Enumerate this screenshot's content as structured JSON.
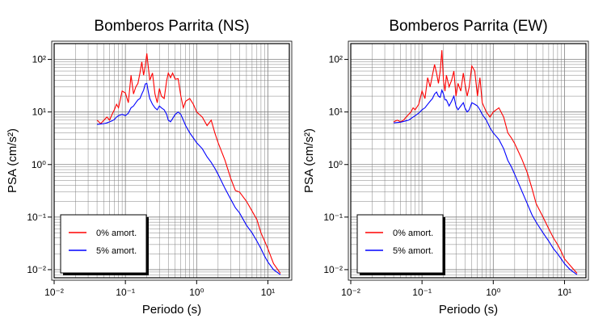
{
  "chart_data": [
    {
      "type": "line",
      "title": "Bomberos Parrita (NS)",
      "xlabel": "Periodo (s)",
      "ylabel": "PSA (cm/s²)",
      "xscale": "log",
      "yscale": "log",
      "xlim": [
        0.01,
        20
      ],
      "ylim": [
        0.007,
        200
      ],
      "grid": true,
      "legend_position": "bottom-left",
      "x_ticks": [
        "10⁻²",
        "10⁻¹",
        "10⁰",
        "10¹"
      ],
      "y_ticks": [
        "10⁻²",
        "10⁻¹",
        "10⁰",
        "10¹",
        "10²"
      ],
      "series": [
        {
          "name": "0% amort.",
          "color": "#ff0000",
          "x": [
            0.04,
            0.045,
            0.05,
            0.055,
            0.06,
            0.065,
            0.07,
            0.075,
            0.08,
            0.09,
            0.1,
            0.11,
            0.12,
            0.13,
            0.14,
            0.15,
            0.16,
            0.17,
            0.18,
            0.19,
            0.2,
            0.21,
            0.22,
            0.24,
            0.26,
            0.28,
            0.3,
            0.32,
            0.35,
            0.38,
            0.4,
            0.43,
            0.46,
            0.5,
            0.55,
            0.6,
            0.65,
            0.7,
            0.8,
            0.9,
            1.0,
            1.2,
            1.4,
            1.6,
            1.8,
            2.0,
            2.5,
            3.0,
            3.5,
            4.0,
            5.0,
            6.0,
            7.0,
            8.0,
            9.0,
            10,
            12,
            15
          ],
          "y": [
            7,
            6,
            7,
            8,
            7,
            9,
            11,
            14,
            12,
            25,
            23,
            15,
            50,
            22,
            30,
            35,
            55,
            90,
            50,
            75,
            130,
            70,
            40,
            55,
            22,
            15,
            28,
            20,
            18,
            40,
            55,
            45,
            55,
            42,
            43,
            20,
            12,
            16,
            18,
            14,
            10,
            8,
            5.5,
            7,
            4,
            2.6,
            1.2,
            0.55,
            0.32,
            0.3,
            0.2,
            0.13,
            0.09,
            0.05,
            0.035,
            0.025,
            0.013,
            0.0085
          ]
        },
        {
          "name": "5% amort.",
          "color": "#0000ff",
          "x": [
            0.04,
            0.045,
            0.05,
            0.055,
            0.06,
            0.065,
            0.07,
            0.075,
            0.08,
            0.09,
            0.1,
            0.11,
            0.12,
            0.13,
            0.14,
            0.15,
            0.16,
            0.17,
            0.18,
            0.19,
            0.2,
            0.21,
            0.22,
            0.24,
            0.26,
            0.28,
            0.3,
            0.32,
            0.35,
            0.38,
            0.4,
            0.43,
            0.46,
            0.5,
            0.55,
            0.6,
            0.65,
            0.7,
            0.8,
            0.9,
            1.0,
            1.2,
            1.4,
            1.6,
            1.8,
            2.0,
            2.5,
            3.0,
            3.5,
            4.0,
            5.0,
            6.0,
            7.0,
            8.0,
            9.0,
            10,
            12,
            15
          ],
          "y": [
            5.8,
            5.9,
            6,
            6.2,
            6.5,
            6.8,
            7.2,
            8,
            8.5,
            9,
            8.5,
            9.5,
            12,
            13,
            15,
            17,
            18,
            22,
            26,
            34,
            35,
            24,
            18,
            14,
            12,
            11,
            13,
            12,
            11,
            9,
            7,
            6.5,
            7.5,
            9,
            10,
            9,
            7,
            5.5,
            4,
            3.2,
            2.6,
            2,
            1.4,
            1.1,
            0.85,
            0.65,
            0.35,
            0.22,
            0.15,
            0.12,
            0.07,
            0.05,
            0.035,
            0.025,
            0.018,
            0.014,
            0.01,
            0.008
          ]
        }
      ]
    },
    {
      "type": "line",
      "title": "Bomberos Parrita (EW)",
      "xlabel": "Periodo (s)",
      "ylabel": "PSA (cm/s²)",
      "xscale": "log",
      "yscale": "log",
      "xlim": [
        0.01,
        20
      ],
      "ylim": [
        0.007,
        200
      ],
      "grid": true,
      "legend_position": "bottom-left",
      "x_ticks": [
        "10⁻²",
        "10⁻¹",
        "10⁰",
        "10¹"
      ],
      "y_ticks": [
        "10⁻²",
        "10⁻¹",
        "10⁰",
        "10¹",
        "10²"
      ],
      "series": [
        {
          "name": "0% amort.",
          "color": "#ff0000",
          "x": [
            0.04,
            0.045,
            0.05,
            0.055,
            0.06,
            0.065,
            0.07,
            0.075,
            0.08,
            0.09,
            0.1,
            0.11,
            0.12,
            0.13,
            0.14,
            0.15,
            0.16,
            0.17,
            0.18,
            0.19,
            0.2,
            0.21,
            0.22,
            0.24,
            0.26,
            0.28,
            0.3,
            0.32,
            0.35,
            0.38,
            0.4,
            0.43,
            0.46,
            0.5,
            0.55,
            0.6,
            0.65,
            0.7,
            0.8,
            0.9,
            1.0,
            1.2,
            1.4,
            1.6,
            1.8,
            2.0,
            2.5,
            3.0,
            3.5,
            4.0,
            5.0,
            6.0,
            7.0,
            8.0,
            9.0,
            10,
            12,
            15
          ],
          "y": [
            6.5,
            7,
            6.5,
            7,
            8,
            9,
            10,
            12,
            11,
            14,
            25,
            18,
            45,
            30,
            50,
            80,
            55,
            35,
            60,
            150,
            40,
            25,
            50,
            30,
            40,
            60,
            20,
            35,
            25,
            55,
            35,
            20,
            30,
            75,
            60,
            20,
            45,
            15,
            10,
            8,
            10,
            12,
            8,
            4,
            3.2,
            2.5,
            1.3,
            0.7,
            0.35,
            0.18,
            0.1,
            0.06,
            0.04,
            0.03,
            0.022,
            0.016,
            0.012,
            0.0085
          ]
        },
        {
          "name": "5% amort.",
          "color": "#0000ff",
          "x": [
            0.04,
            0.045,
            0.05,
            0.055,
            0.06,
            0.065,
            0.07,
            0.075,
            0.08,
            0.09,
            0.1,
            0.11,
            0.12,
            0.13,
            0.14,
            0.15,
            0.16,
            0.17,
            0.18,
            0.19,
            0.2,
            0.21,
            0.22,
            0.24,
            0.26,
            0.28,
            0.3,
            0.32,
            0.35,
            0.38,
            0.4,
            0.43,
            0.46,
            0.5,
            0.55,
            0.6,
            0.65,
            0.7,
            0.8,
            0.9,
            1.0,
            1.2,
            1.4,
            1.6,
            1.8,
            2.0,
            2.5,
            3.0,
            3.5,
            4.0,
            5.0,
            6.0,
            7.0,
            8.0,
            9.0,
            10,
            12,
            15
          ],
          "y": [
            6.2,
            6.3,
            6.4,
            6.6,
            6.8,
            7,
            7.5,
            8,
            8.5,
            9.5,
            11,
            12,
            14,
            16,
            18,
            22,
            24,
            20,
            19,
            26,
            22,
            17,
            17,
            13,
            16,
            20,
            13,
            11,
            13,
            15,
            12,
            10,
            11,
            15,
            14,
            13,
            11,
            9,
            7,
            5,
            4,
            3,
            2,
            1.2,
            0.9,
            0.65,
            0.32,
            0.18,
            0.11,
            0.08,
            0.05,
            0.035,
            0.025,
            0.02,
            0.016,
            0.013,
            0.01,
            0.008
          ]
        }
      ]
    }
  ]
}
